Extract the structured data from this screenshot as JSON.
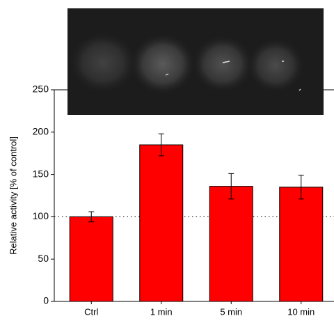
{
  "chart_data": {
    "type": "bar",
    "y_label": "Relative activity [% of control]",
    "categories": [
      "Ctrl",
      "1 min",
      "5 min",
      "10 min"
    ],
    "values": [
      100,
      185,
      136,
      135
    ],
    "errors": [
      6,
      13,
      15,
      14
    ],
    "color": "#ff0000",
    "ylim": [
      0,
      250
    ],
    "yticks": [
      0,
      50,
      100,
      150,
      200,
      250
    ],
    "reference_line": 100
  }
}
